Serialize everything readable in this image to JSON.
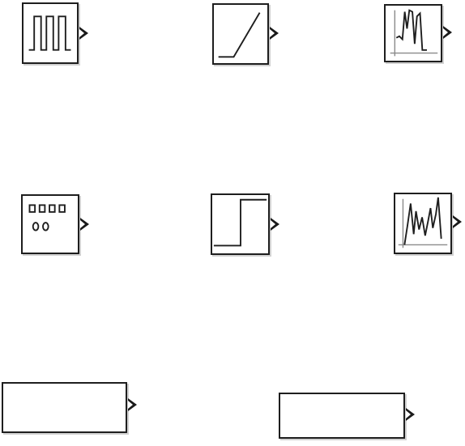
{
  "canvas": {
    "background": "#ffffff",
    "line_color": "#1e1e1e"
  },
  "blocks": [
    {
      "name": "pulse-generator-block",
      "icon": "pulse-train-icon",
      "label": ""
    },
    {
      "name": "ramp-block",
      "icon": "ramp-icon",
      "label": ""
    },
    {
      "name": "signal-from-workspace-block",
      "icon": "waveform-plot-icon",
      "label": ""
    },
    {
      "name": "repeating-sequence-block",
      "icon": "digital-counter-icon",
      "label": ""
    },
    {
      "name": "step-block",
      "icon": "step-icon",
      "label": ""
    },
    {
      "name": "random-signal-block",
      "icon": "random-waveform-icon",
      "label": ""
    },
    {
      "name": "constant-block-left",
      "icon": "",
      "label": ""
    },
    {
      "name": "constant-block-right",
      "icon": "",
      "label": ""
    }
  ]
}
